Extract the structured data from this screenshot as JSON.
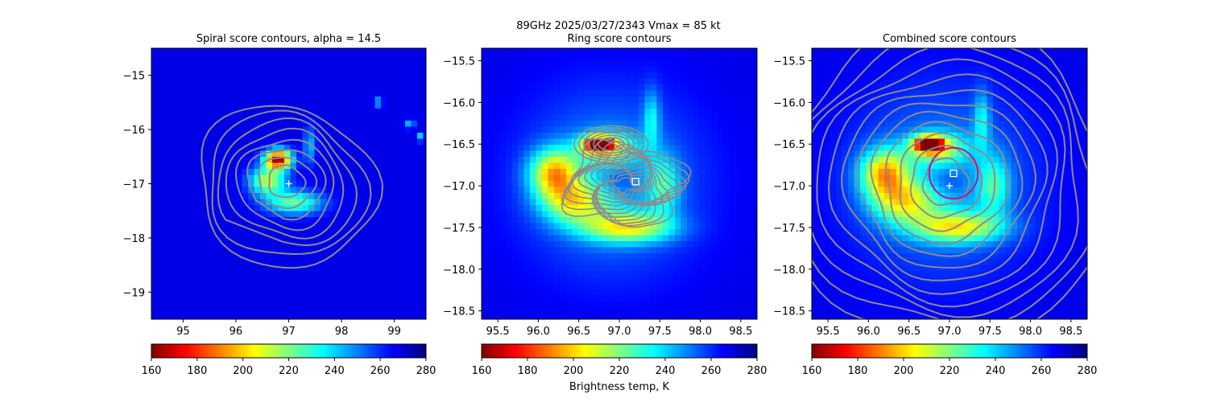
{
  "figure": {
    "suptitle_line1": "89GHz  2025/03/27/2343    Vmax = 85 kt",
    "colorbar_label": "Brightness temp, K"
  },
  "colormap": {
    "name": "jet",
    "reversed": true,
    "stops": [
      "#800000",
      "#ff0000",
      "#ff8000",
      "#ffff00",
      "#80ff80",
      "#00ffff",
      "#0080ff",
      "#0000ff",
      "#000080"
    ]
  },
  "contour_color": "#8c8c8c",
  "marker_colors": {
    "center_cross": "#ffffff",
    "ring_square": "#ffffff",
    "ring_circle": "#c8108c"
  },
  "chart_data": [
    {
      "type": "heatmap",
      "title": "Spiral score contours, alpha = 14.5",
      "xlim": [
        94.4,
        99.6
      ],
      "ylim": [
        -19.5,
        -14.5
      ],
      "xticks": [
        95,
        96,
        97,
        98,
        99
      ],
      "xtick_labels": [
        "95",
        "96",
        "97",
        "98",
        "99"
      ],
      "yticks": [
        -15,
        -16,
        -17,
        -18,
        -19
      ],
      "ytick_labels": [
        "−15",
        "−16",
        "−17",
        "−18",
        "−19"
      ],
      "brightness_temp_range": [
        160,
        280
      ],
      "coldest_cell": {
        "lon": 96.8,
        "lat": -16.55,
        "temp_K": 160
      },
      "center_marker": {
        "lon": 97.0,
        "lat": -17.0
      },
      "contour_center": {
        "lon": 96.95,
        "lat": -16.95
      },
      "contour_count": 8,
      "colorbar": {
        "ticks": [
          160,
          180,
          200,
          220,
          240,
          260,
          280
        ],
        "tick_labels": [
          "160",
          "180",
          "200",
          "220",
          "240",
          "260",
          "280"
        ]
      }
    },
    {
      "type": "heatmap",
      "title": "Ring score contours",
      "xlim": [
        95.3,
        98.7
      ],
      "ylim": [
        -18.6,
        -15.35
      ],
      "xticks": [
        95.5,
        96.0,
        96.5,
        97.0,
        97.5,
        98.0,
        98.5
      ],
      "xtick_labels": [
        "95.5",
        "96.0",
        "96.5",
        "97.0",
        "97.5",
        "98.0",
        "98.5"
      ],
      "yticks": [
        -15.5,
        -16.0,
        -16.5,
        -17.0,
        -17.5,
        -18.0,
        -18.5
      ],
      "ytick_labels": [
        "−15.5",
        "−16.0",
        "−16.5",
        "−17.0",
        "−17.5",
        "−18.0",
        "−18.5"
      ],
      "brightness_temp_range": [
        160,
        280
      ],
      "coldest_cell": {
        "lon": 96.75,
        "lat": -16.5,
        "temp_K": 160
      },
      "ring_center_marker": {
        "lon": 97.2,
        "lat": -16.95
      },
      "contour_count": 14,
      "colorbar": {
        "ticks": [
          160,
          180,
          200,
          220,
          240,
          260,
          280
        ],
        "tick_labels": [
          "160",
          "180",
          "200",
          "220",
          "240",
          "260",
          "280"
        ]
      }
    },
    {
      "type": "heatmap",
      "title": "Combined score contours",
      "xlim": [
        95.3,
        98.7
      ],
      "ylim": [
        -18.6,
        -15.35
      ],
      "xticks": [
        95.5,
        96.0,
        96.5,
        97.0,
        97.5,
        98.0,
        98.5
      ],
      "xtick_labels": [
        "95.5",
        "96.0",
        "96.5",
        "97.0",
        "97.5",
        "98.0",
        "98.5"
      ],
      "yticks": [
        -15.5,
        -16.0,
        -16.5,
        -17.0,
        -17.5,
        -18.0,
        -18.5
      ],
      "ytick_labels": [
        "−15.5",
        "−16.0",
        "−16.5",
        "−17.0",
        "−17.5",
        "−18.0",
        "−18.5"
      ],
      "brightness_temp_range": [
        160,
        280
      ],
      "coldest_cell": {
        "lon": 96.75,
        "lat": -16.55,
        "temp_K": 160
      },
      "center_marker": {
        "lon": 97.0,
        "lat": -17.0
      },
      "ring_center_marker": {
        "lon": 97.05,
        "lat": -16.85
      },
      "ring_radius_deg": 0.3,
      "contour_center": {
        "lon": 96.95,
        "lat": -16.9
      },
      "contour_count": 12,
      "colorbar": {
        "ticks": [
          160,
          180,
          200,
          220,
          240,
          260,
          280
        ],
        "tick_labels": [
          "160",
          "180",
          "200",
          "220",
          "240",
          "260",
          "280"
        ]
      }
    }
  ]
}
